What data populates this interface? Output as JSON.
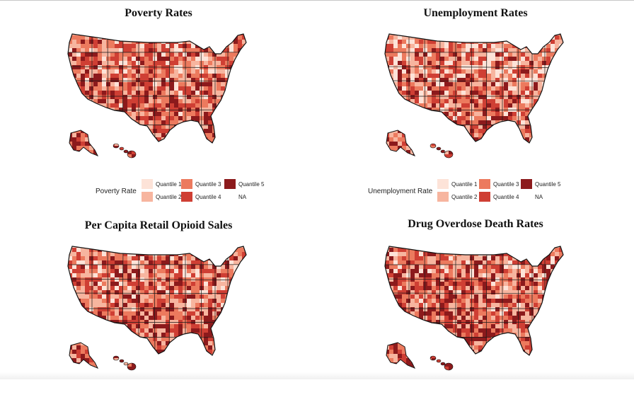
{
  "panels": [
    {
      "title": "Poverty Rates",
      "legend_title": "Poverty Rate",
      "legend_entries": [
        "Quantile 1",
        "Quantile 2",
        "Quantile 3",
        "Quantile 4",
        "Quantile 5",
        "NA"
      ]
    },
    {
      "title": "Unemployment Rates",
      "legend_title": "Unemployment Rate",
      "legend_entries": [
        "Quantile 1",
        "Quantile 2",
        "Quantile 3",
        "Quantile 4",
        "Quantile 5",
        "NA"
      ]
    },
    {
      "title": "Per Capita Retail Opioid Sales",
      "legend_title": "",
      "legend_entries": []
    },
    {
      "title": "Drug Overdose Death Rates",
      "legend_title": "",
      "legend_entries": []
    }
  ],
  "quantile_colors": [
    "#fde3d8",
    "#f7b59f",
    "#ec7a5e",
    "#cf3f34",
    "#8c1a1c"
  ],
  "na_color": "#ffffff"
}
